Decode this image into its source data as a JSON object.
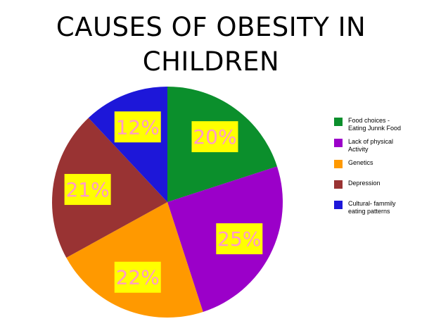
{
  "title": {
    "line1": "CAUSES OF OBESITY IN",
    "line2": "CHILDREN"
  },
  "chart_data": {
    "type": "pie",
    "title": "CAUSES OF OBESITY IN CHILDREN",
    "legend_position": "right",
    "slices": [
      {
        "label": "Food choices - Eating Junnk Food",
        "value": 20,
        "display": "20%",
        "color": "#0b8f2c"
      },
      {
        "label": "Lack of physical Activity",
        "value": 25,
        "display": "25%",
        "color": "#9b00c9"
      },
      {
        "label": "Genetics",
        "value": 22,
        "display": "22%",
        "color": "#ff9900"
      },
      {
        "label": "Depression",
        "value": 21,
        "display": "21%",
        "color": "#993333"
      },
      {
        "label": "Cultural- fammily eating patterns",
        "value": 12,
        "display": "12%",
        "color": "#1d17d9"
      }
    ],
    "data_label_style": {
      "box_color": "#ffff00",
      "text_color": "#ff99cc"
    }
  },
  "legend": {
    "items": [
      {
        "line1": "Food choices -",
        "line2": "Eating Junnk Food",
        "color": "#0b8f2c"
      },
      {
        "line1": "Lack of physical",
        "line2": "Activity",
        "color": "#9b00c9"
      },
      {
        "line1": "Genetics",
        "line2": "",
        "color": "#ff9900"
      },
      {
        "line1": "Depression",
        "line2": "",
        "color": "#993333"
      },
      {
        "line1": "Cultural- fammily",
        "line2": "eating patterns",
        "color": "#1d17d9"
      }
    ]
  }
}
